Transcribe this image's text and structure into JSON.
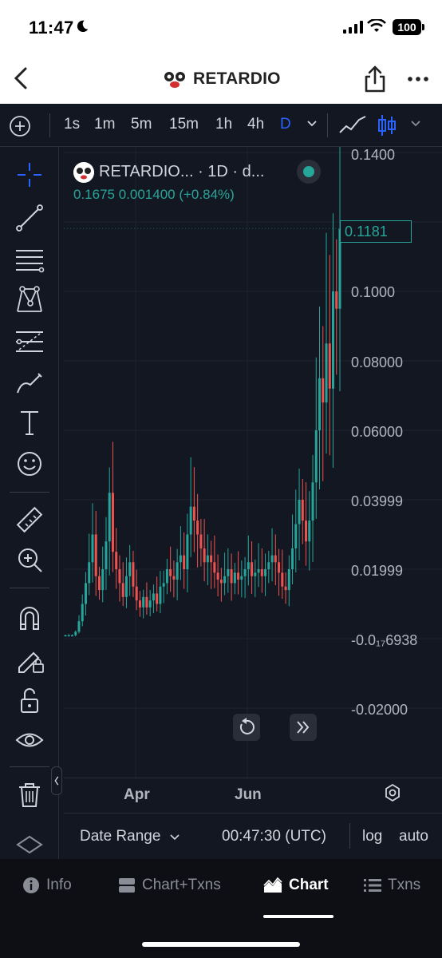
{
  "status_bar": {
    "time": "11:47",
    "battery": "100"
  },
  "header": {
    "title": "RETARDIO"
  },
  "toolbar": {
    "timeframes": [
      "1s",
      "1m",
      "5m",
      "15m",
      "1h",
      "4h",
      "D"
    ],
    "active_timeframe": "D"
  },
  "legend": {
    "title": "RETARDIO... · 1D · d...",
    "ohlc": "0.1675  0.001400 (+0.84%)",
    "status_color": "#26a69a"
  },
  "price_axis": {
    "labels": [
      "0.1400",
      "0.1000",
      "0.08000",
      "0.06000",
      "0.03999",
      "0.01999",
      "-0.0₁₇6938",
      "-0.02000"
    ],
    "last_price": "0.1181"
  },
  "time_axis": {
    "labels": [
      "Apr",
      "Jun"
    ]
  },
  "bottom_bar": {
    "date_range": "Date Range",
    "time": "00:47:30 (UTC)",
    "log": "log",
    "auto": "auto"
  },
  "tabs": [
    {
      "label": "Info",
      "icon": "info-icon"
    },
    {
      "label": "Chart+Txns",
      "icon": "chart-txns-icon"
    },
    {
      "label": "Chart",
      "icon": "chart-area-icon",
      "active": true
    },
    {
      "label": "Txns",
      "icon": "list-icon"
    }
  ],
  "colors": {
    "up": "#26a69a",
    "down": "#ef5350",
    "background": "#131722",
    "accent": "#2962ff"
  },
  "chart_data": {
    "type": "candlestick",
    "interval": "1D",
    "yaxis_ticks": [
      -0.02,
      0.0,
      0.01999,
      0.03999,
      0.06,
      0.08,
      0.1,
      0.14
    ],
    "last_price": 0.1181,
    "x_ticks": [
      "Apr",
      "Jun"
    ],
    "closes": [
      0.001,
      0.001,
      0.001,
      0.002,
      0.005,
      0.01,
      0.016,
      0.022,
      0.03,
      0.018,
      0.014,
      0.02,
      0.028,
      0.042,
      0.025,
      0.02,
      0.016,
      0.012,
      0.018,
      0.022,
      0.015,
      0.011,
      0.009,
      0.012,
      0.009,
      0.011,
      0.013,
      0.01,
      0.015,
      0.016,
      0.02,
      0.018,
      0.017,
      0.022,
      0.024,
      0.02,
      0.03,
      0.038,
      0.034,
      0.03,
      0.026,
      0.022,
      0.024,
      0.022,
      0.019,
      0.017,
      0.016,
      0.018,
      0.02,
      0.016,
      0.019,
      0.017,
      0.018,
      0.02,
      0.022,
      0.018,
      0.019,
      0.02,
      0.018,
      0.02,
      0.022,
      0.024,
      0.022,
      0.019,
      0.015,
      0.014,
      0.02,
      0.026,
      0.033,
      0.04,
      0.034,
      0.028,
      0.034,
      0.045,
      0.06,
      0.075,
      0.068,
      0.085,
      0.072,
      0.1,
      0.095,
      0.118
    ]
  }
}
